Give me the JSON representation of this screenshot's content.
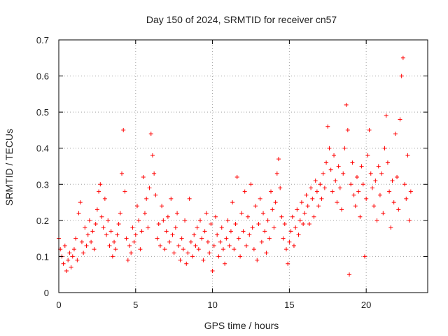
{
  "chart_data": {
    "type": "scatter",
    "title": "Day 150 of 2024, SRMTID for receiver cn57",
    "xlabel": "GPS time / hours",
    "ylabel": "SRMTID / TECUs",
    "xlim": [
      0,
      24
    ],
    "ylim": [
      0,
      0.7
    ],
    "x_ticks": [
      0,
      5,
      10,
      15,
      20
    ],
    "y_ticks": [
      0,
      0.1,
      0.2,
      0.3,
      0.4,
      0.5,
      0.6,
      0.7
    ],
    "x_tick_labels": [
      "0",
      "5",
      "10",
      "15",
      "20"
    ],
    "y_tick_labels": [
      "0",
      "0.1",
      "0.2",
      "0.3",
      "0.4",
      "0.5",
      "0.6",
      "0.7"
    ],
    "grid": true,
    "marker": "+",
    "series": [
      {
        "name": "cn57",
        "color": "#ff0000",
        "points": [
          [
            0.0,
            0.15
          ],
          [
            0.1,
            0.12
          ],
          [
            0.2,
            0.1
          ],
          [
            0.3,
            0.08
          ],
          [
            0.4,
            0.13
          ],
          [
            0.5,
            0.06
          ],
          [
            0.6,
            0.09
          ],
          [
            0.7,
            0.11
          ],
          [
            0.8,
            0.07
          ],
          [
            0.9,
            0.1
          ],
          [
            1.0,
            0.12
          ],
          [
            1.1,
            0.15
          ],
          [
            1.2,
            0.09
          ],
          [
            1.3,
            0.22
          ],
          [
            1.4,
            0.25
          ],
          [
            1.5,
            0.14
          ],
          [
            1.6,
            0.11
          ],
          [
            1.7,
            0.18
          ],
          [
            1.8,
            0.13
          ],
          [
            1.9,
            0.16
          ],
          [
            2.0,
            0.2
          ],
          [
            2.1,
            0.14
          ],
          [
            2.2,
            0.17
          ],
          [
            2.3,
            0.12
          ],
          [
            2.4,
            0.19
          ],
          [
            2.5,
            0.23
          ],
          [
            2.6,
            0.28
          ],
          [
            2.7,
            0.3
          ],
          [
            2.8,
            0.21
          ],
          [
            2.9,
            0.18
          ],
          [
            3.0,
            0.26
          ],
          [
            3.1,
            0.16
          ],
          [
            3.2,
            0.2
          ],
          [
            3.3,
            0.13
          ],
          [
            3.4,
            0.17
          ],
          [
            3.5,
            0.1
          ],
          [
            3.6,
            0.14
          ],
          [
            3.7,
            0.12
          ],
          [
            3.8,
            0.16
          ],
          [
            3.9,
            0.19
          ],
          [
            4.0,
            0.22
          ],
          [
            4.1,
            0.33
          ],
          [
            4.2,
            0.45
          ],
          [
            4.3,
            0.28
          ],
          [
            4.4,
            0.15
          ],
          [
            4.5,
            0.09
          ],
          [
            4.6,
            0.13
          ],
          [
            4.7,
            0.11
          ],
          [
            4.8,
            0.18
          ],
          [
            4.9,
            0.14
          ],
          [
            5.0,
            0.16
          ],
          [
            5.1,
            0.24
          ],
          [
            5.2,
            0.2
          ],
          [
            5.3,
            0.12
          ],
          [
            5.4,
            0.17
          ],
          [
            5.5,
            0.32
          ],
          [
            5.6,
            0.22
          ],
          [
            5.7,
            0.26
          ],
          [
            5.8,
            0.18
          ],
          [
            5.9,
            0.29
          ],
          [
            6.0,
            0.44
          ],
          [
            6.1,
            0.38
          ],
          [
            6.2,
            0.33
          ],
          [
            6.3,
            0.27
          ],
          [
            6.4,
            0.15
          ],
          [
            6.5,
            0.19
          ],
          [
            6.6,
            0.13
          ],
          [
            6.7,
            0.24
          ],
          [
            6.8,
            0.2
          ],
          [
            6.9,
            0.12
          ],
          [
            7.0,
            0.17
          ],
          [
            7.1,
            0.21
          ],
          [
            7.2,
            0.14
          ],
          [
            7.3,
            0.26
          ],
          [
            7.4,
            0.16
          ],
          [
            7.5,
            0.11
          ],
          [
            7.6,
            0.18
          ],
          [
            7.7,
            0.22
          ],
          [
            7.8,
            0.13
          ],
          [
            7.9,
            0.09
          ],
          [
            8.0,
            0.15
          ],
          [
            8.1,
            0.12
          ],
          [
            8.2,
            0.2
          ],
          [
            8.3,
            0.08
          ],
          [
            8.4,
            0.11
          ],
          [
            8.5,
            0.26
          ],
          [
            8.6,
            0.14
          ],
          [
            8.7,
            0.1
          ],
          [
            8.8,
            0.16
          ],
          [
            8.9,
            0.13
          ],
          [
            9.0,
            0.18
          ],
          [
            9.1,
            0.12
          ],
          [
            9.2,
            0.2
          ],
          [
            9.3,
            0.15
          ],
          [
            9.4,
            0.09
          ],
          [
            9.5,
            0.17
          ],
          [
            9.6,
            0.22
          ],
          [
            9.7,
            0.14
          ],
          [
            9.8,
            0.11
          ],
          [
            9.9,
            0.19
          ],
          [
            10.0,
            0.06
          ],
          [
            10.1,
            0.13
          ],
          [
            10.2,
            0.21
          ],
          [
            10.3,
            0.16
          ],
          [
            10.4,
            0.1
          ],
          [
            10.5,
            0.14
          ],
          [
            10.6,
            0.18
          ],
          [
            10.7,
            0.12
          ],
          [
            10.8,
            0.08
          ],
          [
            10.9,
            0.15
          ],
          [
            11.0,
            0.2
          ],
          [
            11.1,
            0.13
          ],
          [
            11.2,
            0.17
          ],
          [
            11.3,
            0.25
          ],
          [
            11.4,
            0.12
          ],
          [
            11.5,
            0.19
          ],
          [
            11.6,
            0.32
          ],
          [
            11.7,
            0.15
          ],
          [
            11.8,
            0.1
          ],
          [
            11.9,
            0.22
          ],
          [
            12.0,
            0.17
          ],
          [
            12.1,
            0.28
          ],
          [
            12.2,
            0.13
          ],
          [
            12.3,
            0.21
          ],
          [
            12.4,
            0.16
          ],
          [
            12.5,
            0.3
          ],
          [
            12.6,
            0.18
          ],
          [
            12.7,
            0.12
          ],
          [
            12.8,
            0.24
          ],
          [
            12.9,
            0.09
          ],
          [
            13.0,
            0.19
          ],
          [
            13.1,
            0.26
          ],
          [
            13.2,
            0.14
          ],
          [
            13.3,
            0.22
          ],
          [
            13.4,
            0.17
          ],
          [
            13.5,
            0.11
          ],
          [
            13.6,
            0.2
          ],
          [
            13.7,
            0.15
          ],
          [
            13.8,
            0.28
          ],
          [
            13.9,
            0.23
          ],
          [
            14.0,
            0.18
          ],
          [
            14.1,
            0.25
          ],
          [
            14.2,
            0.33
          ],
          [
            14.3,
            0.37
          ],
          [
            14.4,
            0.29
          ],
          [
            14.5,
            0.21
          ],
          [
            14.6,
            0.15
          ],
          [
            14.7,
            0.19
          ],
          [
            14.8,
            0.12
          ],
          [
            14.9,
            0.08
          ],
          [
            15.0,
            0.14
          ],
          [
            15.1,
            0.17
          ],
          [
            15.2,
            0.21
          ],
          [
            15.3,
            0.13
          ],
          [
            15.4,
            0.18
          ],
          [
            15.5,
            0.23
          ],
          [
            15.6,
            0.16
          ],
          [
            15.7,
            0.2
          ],
          [
            15.8,
            0.25
          ],
          [
            15.9,
            0.19
          ],
          [
            16.0,
            0.22
          ],
          [
            16.1,
            0.27
          ],
          [
            16.2,
            0.24
          ],
          [
            16.3,
            0.19
          ],
          [
            16.4,
            0.29
          ],
          [
            16.5,
            0.26
          ],
          [
            16.6,
            0.21
          ],
          [
            16.7,
            0.31
          ],
          [
            16.8,
            0.28
          ],
          [
            16.9,
            0.24
          ],
          [
            17.0,
            0.3
          ],
          [
            17.1,
            0.26
          ],
          [
            17.2,
            0.33
          ],
          [
            17.3,
            0.29
          ],
          [
            17.4,
            0.36
          ],
          [
            17.5,
            0.46
          ],
          [
            17.6,
            0.4
          ],
          [
            17.7,
            0.34
          ],
          [
            17.8,
            0.28
          ],
          [
            17.9,
            0.38
          ],
          [
            18.0,
            0.31
          ],
          [
            18.1,
            0.25
          ],
          [
            18.2,
            0.35
          ],
          [
            18.3,
            0.29
          ],
          [
            18.4,
            0.23
          ],
          [
            18.5,
            0.33
          ],
          [
            18.6,
            0.4
          ],
          [
            18.7,
            0.52
          ],
          [
            18.8,
            0.45
          ],
          [
            18.9,
            0.05
          ],
          [
            19.0,
            0.3
          ],
          [
            19.1,
            0.36
          ],
          [
            19.2,
            0.27
          ],
          [
            19.3,
            0.24
          ],
          [
            19.4,
            0.32
          ],
          [
            19.5,
            0.28
          ],
          [
            19.6,
            0.21
          ],
          [
            19.7,
            0.35
          ],
          [
            19.8,
            0.3
          ],
          [
            19.9,
            0.1
          ],
          [
            20.0,
            0.26
          ],
          [
            20.1,
            0.38
          ],
          [
            20.2,
            0.45
          ],
          [
            20.3,
            0.33
          ],
          [
            20.4,
            0.29
          ],
          [
            20.5,
            0.24
          ],
          [
            20.6,
            0.31
          ],
          [
            20.7,
            0.2
          ],
          [
            20.8,
            0.35
          ],
          [
            20.9,
            0.27
          ],
          [
            21.0,
            0.33
          ],
          [
            21.1,
            0.22
          ],
          [
            21.2,
            0.4
          ],
          [
            21.3,
            0.49
          ],
          [
            21.4,
            0.36
          ],
          [
            21.5,
            0.28
          ],
          [
            21.6,
            0.18
          ],
          [
            21.7,
            0.31
          ],
          [
            21.8,
            0.25
          ],
          [
            21.9,
            0.44
          ],
          [
            22.0,
            0.32
          ],
          [
            22.1,
            0.23
          ],
          [
            22.2,
            0.48
          ],
          [
            22.3,
            0.6
          ],
          [
            22.4,
            0.65
          ],
          [
            22.5,
            0.3
          ],
          [
            22.6,
            0.26
          ],
          [
            22.7,
            0.38
          ],
          [
            22.8,
            0.2
          ],
          [
            22.9,
            0.28
          ]
        ]
      }
    ]
  }
}
